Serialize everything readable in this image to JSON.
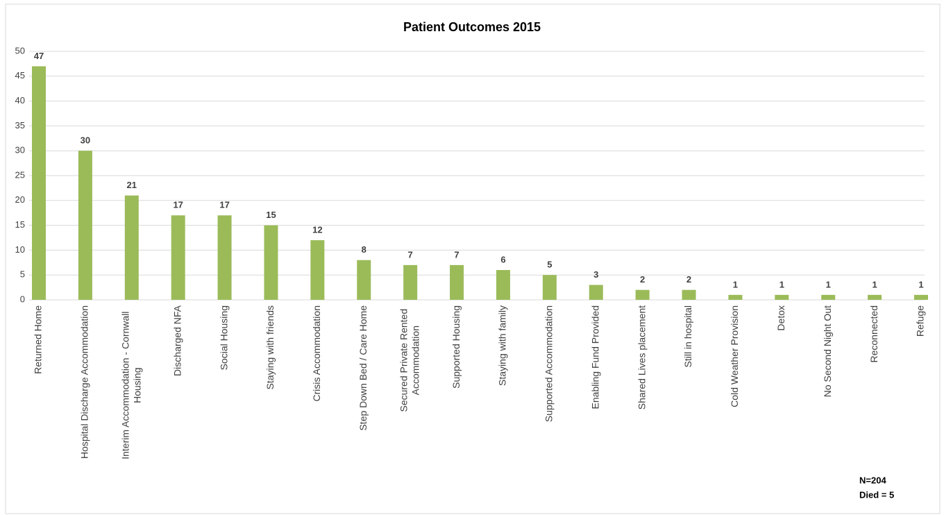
{
  "chart_data": {
    "type": "bar",
    "title": "Patient Outcomes 2015",
    "categories": [
      "Returned Home",
      "Hospital Discharge Accommodation",
      "Interim Accommodation - Cornwall Housing",
      "Discharged NFA",
      "Social Housing",
      "Staying with friends",
      "Crisis Accommodation",
      "Step Down Bed / Care Home",
      "Secured Private Rented Accommodation",
      "Supported Housing",
      "Staying with family",
      "Supported Accommodation",
      "Enabling Fund Provided",
      "Shared Lives placement",
      "Still in hospital",
      "Cold Weather Provision",
      "Detox",
      "No Second Night Out",
      "Reconnected",
      "Refuge"
    ],
    "values": [
      47,
      30,
      21,
      17,
      17,
      15,
      12,
      8,
      7,
      7,
      6,
      5,
      3,
      2,
      2,
      1,
      1,
      1,
      1,
      1
    ],
    "color": "#9bbb59",
    "ylim": [
      0,
      50
    ],
    "yticks": [
      0,
      5,
      10,
      15,
      20,
      25,
      30,
      35,
      40,
      45,
      50
    ],
    "grid": true,
    "annotations": [
      "N=204",
      "Died = 5"
    ]
  }
}
